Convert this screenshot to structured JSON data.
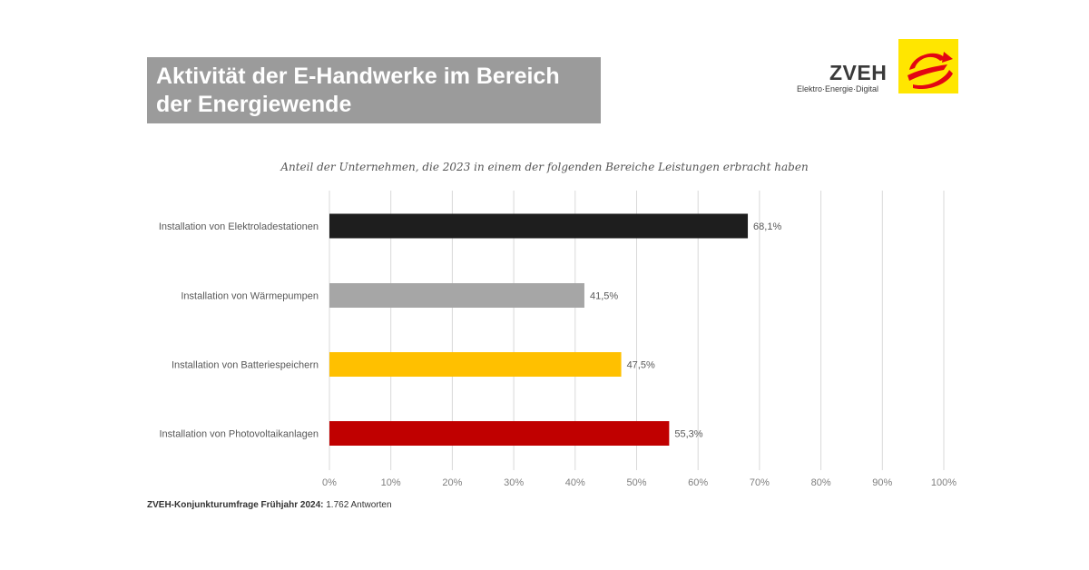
{
  "header": {
    "title_line1": "Aktivität der E-Handwerke im Bereich",
    "title_line2": "der Energiewende"
  },
  "logo": {
    "name": "ZVEH",
    "tagline": "Elektro·Energie·Digital",
    "mark_bg": "#ffe600",
    "mark_fg": "#e30613"
  },
  "footer": {
    "source_bold": "ZVEH-Konjunkturumfrage Frühjahr 2024:",
    "source_rest": " 1.762 Antworten"
  },
  "chart_data": {
    "type": "bar",
    "orientation": "horizontal",
    "title": "Anteil der Unternehmen, die 2023 in einem der folgenden Bereiche Leistungen erbracht haben",
    "categories": [
      "Installation von Elektroladestationen",
      "Installation von Wärmepumpen",
      "Installation von Batteriespeichern",
      "Installation von Photovoltaikanlagen"
    ],
    "values": [
      68.1,
      41.5,
      47.5,
      55.3
    ],
    "value_labels": [
      "68,1%",
      "41,5%",
      "47,5%",
      "55,3%"
    ],
    "colors": [
      "#1e1e1e",
      "#a6a6a6",
      "#ffc000",
      "#c00000"
    ],
    "xlim": [
      0,
      100
    ],
    "xticks": [
      "0%",
      "10%",
      "20%",
      "30%",
      "40%",
      "50%",
      "60%",
      "70%",
      "80%",
      "90%",
      "100%"
    ],
    "grid": true,
    "legend": "none"
  }
}
